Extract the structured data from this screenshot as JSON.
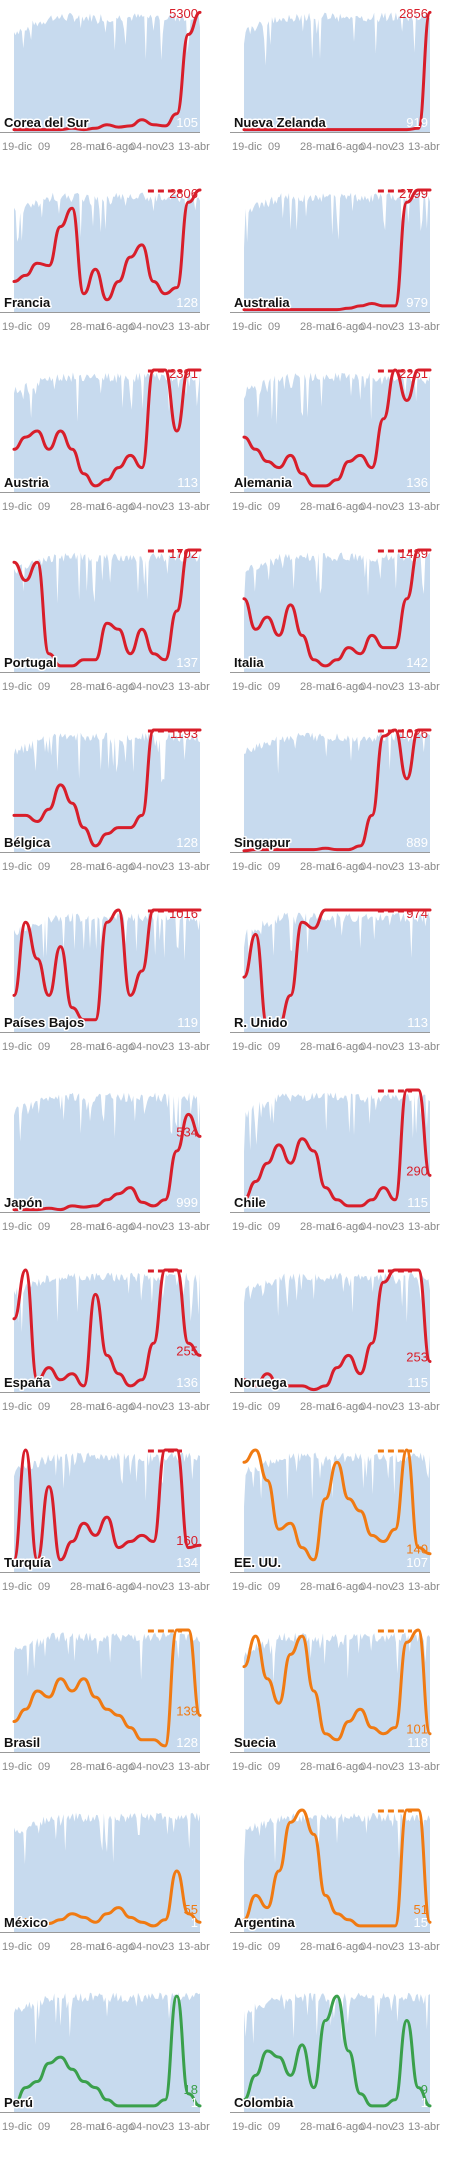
{
  "colors": {
    "background_area": "#c7daee",
    "red": "#d81e2a",
    "orange": "#f07a12",
    "green": "#3aa04b",
    "tick_text": "#888888"
  },
  "chart_data": {
    "type": "line",
    "xlabel": "",
    "ylabel": "",
    "x_ticks": [
      "19-dic",
      "09",
      "28-mar",
      "16-ago",
      "04-nov",
      "23",
      "13-abr"
    ],
    "panels": [
      {
        "country": "Corea del Sur",
        "value": "5300",
        "tests_value": "105",
        "color": "red",
        "clipped": false,
        "y": [
          0.02,
          0.02,
          0.02,
          0.02,
          0.02,
          0.03,
          0.02,
          0.03,
          0.06,
          0.04,
          0.05,
          0.1,
          0.06,
          0.05,
          0.15,
          0.8,
          0.98
        ]
      },
      {
        "country": "Nueva Zelanda",
        "value": "2856",
        "tests_value": "919",
        "color": "red",
        "clipped": false,
        "y": [
          0.02,
          0.02,
          0.02,
          0.02,
          0.02,
          0.02,
          0.02,
          0.02,
          0.02,
          0.02,
          0.02,
          0.02,
          0.02,
          0.02,
          0.02,
          0.03,
          0.98
        ]
      },
      {
        "country": "Francia",
        "value": "2806",
        "tests_value": "128",
        "color": "red",
        "clipped": true,
        "y": [
          0.25,
          0.3,
          0.4,
          0.38,
          0.7,
          0.85,
          0.15,
          0.35,
          0.1,
          0.25,
          0.45,
          0.55,
          0.25,
          0.15,
          0.2,
          0.9,
          1.05
        ]
      },
      {
        "country": "Australia",
        "value": "2799",
        "tests_value": "979",
        "color": "red",
        "clipped": true,
        "y": [
          0.02,
          0.02,
          0.02,
          0.02,
          0.02,
          0.02,
          0.02,
          0.02,
          0.02,
          0.03,
          0.05,
          0.07,
          0.05,
          0.05,
          0.9,
          1.05,
          1.05
        ]
      },
      {
        "country": "Austria",
        "value": "2391",
        "tests_value": "113",
        "color": "red",
        "clipped": true,
        "y": [
          0.35,
          0.45,
          0.5,
          0.35,
          0.5,
          0.35,
          0.15,
          0.05,
          0.1,
          0.2,
          0.3,
          0.2,
          1.05,
          1.05,
          0.5,
          1.05,
          1.05
        ]
      },
      {
        "country": "Alemania",
        "value": "2261",
        "tests_value": "136",
        "color": "red",
        "clipped": true,
        "y": [
          0.45,
          0.35,
          0.25,
          0.2,
          0.3,
          0.15,
          0.05,
          0.05,
          0.1,
          0.25,
          0.3,
          0.2,
          0.6,
          1.05,
          0.75,
          1.05,
          1.05
        ]
      },
      {
        "country": "Portugal",
        "value": "1702",
        "tests_value": "137",
        "color": "red",
        "clipped": true,
        "y": [
          0.9,
          0.75,
          0.9,
          0.15,
          0.05,
          0.05,
          0.1,
          0.1,
          0.4,
          0.35,
          0.15,
          0.35,
          0.15,
          0.1,
          0.5,
          1.05,
          1.05
        ]
      },
      {
        "country": "Italia",
        "value": "1489",
        "tests_value": "142",
        "color": "red",
        "clipped": true,
        "y": [
          0.6,
          0.35,
          0.45,
          0.3,
          0.55,
          0.3,
          0.1,
          0.05,
          0.1,
          0.2,
          0.15,
          0.3,
          0.2,
          0.2,
          0.6,
          1.05,
          1.05
        ]
      },
      {
        "country": "Bélgica",
        "value": "1193",
        "tests_value": "128",
        "color": "red",
        "clipped": true,
        "y": [
          0.3,
          0.3,
          0.25,
          0.35,
          0.55,
          0.4,
          0.2,
          0.05,
          0.15,
          0.2,
          0.2,
          0.3,
          1.05,
          1.05,
          1.05,
          1.05,
          1.05
        ]
      },
      {
        "country": "Singapur",
        "value": "1026",
        "tests_value": "889",
        "color": "red",
        "clipped": true,
        "y": [
          0.01,
          0.02,
          0.02,
          0.02,
          0.02,
          0.02,
          0.02,
          0.03,
          0.02,
          0.02,
          0.05,
          0.3,
          0.95,
          1.05,
          0.6,
          1.05,
          1.05
        ]
      },
      {
        "country": "Países Bajos",
        "value": "1016",
        "tests_value": "119",
        "color": "red",
        "clipped": true,
        "y": [
          0.3,
          0.9,
          0.6,
          0.3,
          0.7,
          0.2,
          0.1,
          0.1,
          0.9,
          1.05,
          0.3,
          0.5,
          1.05,
          1.05,
          1.05,
          1.05,
          1.05
        ]
      },
      {
        "country": "R. Unido",
        "value": "974",
        "tests_value": "113",
        "color": "red",
        "clipped": true,
        "y": [
          0.45,
          0.8,
          0.05,
          0.05,
          0.3,
          0.9,
          0.85,
          1.0,
          1.05,
          1.05,
          1.05,
          1.05,
          1.05,
          1.05,
          1.05,
          1.05,
          1.05
        ]
      },
      {
        "country": "Japón",
        "value": "534",
        "tests_value": "999",
        "color": "red",
        "clipped": false,
        "y": [
          0.02,
          0.02,
          0.02,
          0.03,
          0.02,
          0.05,
          0.04,
          0.05,
          0.1,
          0.15,
          0.2,
          0.08,
          0.05,
          0.1,
          0.5,
          0.8,
          0.62
        ]
      },
      {
        "country": "Chile",
        "value": "290",
        "tests_value": "115",
        "color": "red",
        "clipped": true,
        "y": [
          0.1,
          0.25,
          0.4,
          0.55,
          0.4,
          0.6,
          0.5,
          0.2,
          0.1,
          0.05,
          0.05,
          0.1,
          0.2,
          0.1,
          1.05,
          1.05,
          0.3
        ]
      },
      {
        "country": "España",
        "value": "255",
        "tests_value": "136",
        "color": "red",
        "clipped": true,
        "y": [
          0.6,
          1.05,
          0.1,
          0.2,
          0.1,
          0.15,
          0.05,
          0.8,
          0.3,
          0.15,
          0.05,
          0.1,
          0.4,
          1.05,
          1.05,
          0.4,
          0.3
        ]
      },
      {
        "country": "Noruega",
        "value": "253",
        "tests_value": "115",
        "color": "red",
        "clipped": true,
        "y": [
          0.1,
          0.05,
          0.15,
          0.05,
          0.05,
          0.05,
          0.02,
          0.05,
          0.2,
          0.3,
          0.15,
          0.4,
          0.9,
          1.05,
          1.05,
          1.05,
          0.25
        ]
      },
      {
        "country": "Turquía",
        "value": "160",
        "tests_value": "134",
        "color": "red",
        "clipped": true,
        "y": [
          0.1,
          1.05,
          0.1,
          0.7,
          0.1,
          0.25,
          0.4,
          0.3,
          0.45,
          0.2,
          0.25,
          0.3,
          0.25,
          1.05,
          1.05,
          0.2,
          0.22
        ]
      },
      {
        "country": "EE. UU.",
        "value": "140",
        "tests_value": "107",
        "color": "orange",
        "clipped": true,
        "y": [
          0.9,
          1.05,
          0.75,
          0.35,
          0.4,
          0.2,
          0.1,
          0.6,
          0.9,
          0.6,
          0.5,
          0.3,
          0.25,
          0.35,
          1.05,
          0.2,
          0.15
        ]
      },
      {
        "country": "Brasil",
        "value": "139",
        "tests_value": "128",
        "color": "orange",
        "clipped": true,
        "y": [
          0.25,
          0.35,
          0.5,
          0.45,
          0.6,
          0.5,
          0.6,
          0.45,
          0.35,
          0.3,
          0.2,
          0.1,
          0.1,
          0.05,
          1.05,
          1.05,
          0.3
        ]
      },
      {
        "country": "Suecia",
        "value": "101",
        "tests_value": "118",
        "color": "orange",
        "clipped": true,
        "y": [
          0.7,
          0.95,
          0.6,
          0.4,
          0.8,
          0.95,
          0.5,
          0.15,
          0.1,
          0.25,
          0.35,
          0.2,
          0.15,
          0.2,
          0.9,
          1.05,
          0.15
        ]
      },
      {
        "country": "México",
        "value": "55",
        "tests_value": "1",
        "color": "orange",
        "clipped": false,
        "y": [
          0.08,
          0.1,
          0.08,
          0.07,
          0.1,
          0.15,
          0.12,
          0.08,
          0.15,
          0.2,
          0.12,
          0.08,
          0.05,
          0.1,
          0.5,
          0.15,
          0.08
        ]
      },
      {
        "country": "Argentina",
        "value": "51",
        "tests_value": "15",
        "color": "orange",
        "clipped": true,
        "y": [
          0.1,
          0.3,
          0.2,
          0.5,
          0.9,
          1.05,
          0.8,
          0.3,
          0.15,
          0.1,
          0.05,
          0.05,
          0.05,
          0.05,
          1.05,
          1.05,
          0.08
        ]
      },
      {
        "country": "Perú",
        "value": "18",
        "tests_value": "1",
        "color": "green",
        "clipped": false,
        "y": [
          0.05,
          0.2,
          0.25,
          0.4,
          0.45,
          0.35,
          0.25,
          0.2,
          0.1,
          0.05,
          0.05,
          0.05,
          0.05,
          0.1,
          0.95,
          0.15,
          0.05
        ]
      },
      {
        "country": "Colombia",
        "value": "9",
        "tests_value": "1",
        "color": "green",
        "clipped": false,
        "y": [
          0.1,
          0.3,
          0.5,
          0.45,
          0.3,
          0.55,
          0.2,
          0.75,
          0.95,
          0.5,
          0.15,
          0.05,
          0.05,
          0.1,
          0.75,
          0.2,
          0.05
        ]
      }
    ]
  }
}
